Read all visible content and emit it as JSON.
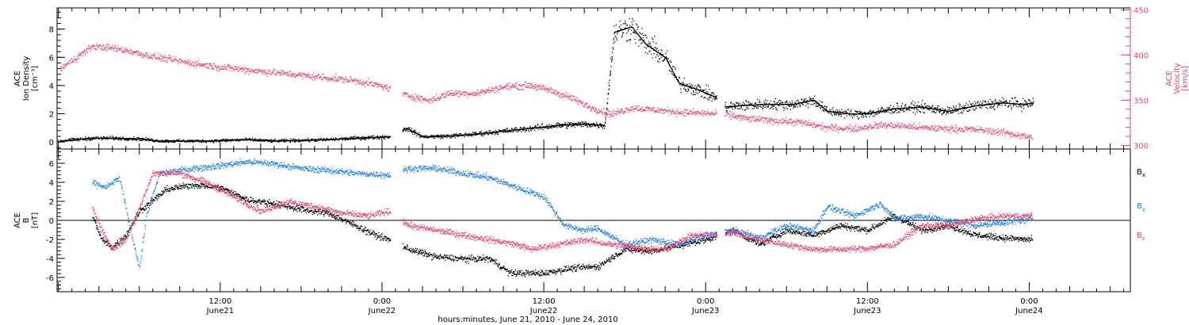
{
  "figure": {
    "xlabel": "hours:minutes, June 21, 2010 - June 24, 2010",
    "xticks": [
      {
        "time": "12:00",
        "date": "June21",
        "hour": 12
      },
      {
        "time": "0:00",
        "date": "June22",
        "hour": 24
      },
      {
        "time": "12:00",
        "date": "June22",
        "hour": 36
      },
      {
        "time": "0:00",
        "date": "June23",
        "hour": 48
      },
      {
        "time": "12:00",
        "date": "June23",
        "hour": 60
      },
      {
        "time": "0:00",
        "date": "June24",
        "hour": 72
      }
    ],
    "colors": {
      "black": "#000000",
      "pink": "#e8436a",
      "blue": "#1e82e6"
    }
  },
  "chart_data": [
    {
      "type": "scatter",
      "panel": "top",
      "ylabel_left": [
        "ACE",
        "Ion Density",
        "[cm⁻³]"
      ],
      "ylabel_right": [
        "ACE",
        "Velocity",
        "[km/s]"
      ],
      "ylim_left": [
        -0.5,
        9.5
      ],
      "ylim_right": [
        296,
        452
      ],
      "yticks_left": [
        0,
        2,
        4,
        6,
        8
      ],
      "yticks_right": [
        300,
        350,
        400,
        450
      ],
      "xlim_hours": [
        -0.1,
        79.5
      ],
      "series": [
        {
          "axis": "left",
          "color": "black",
          "points": [
            [
              0.1,
              0.1
            ],
            [
              2.5,
              0.3
            ],
            [
              4,
              0.3
            ],
            [
              6,
              0.25
            ],
            [
              7.5,
              0.1
            ],
            [
              9,
              0.1
            ],
            [
              11,
              0.1
            ],
            [
              12.5,
              0.15
            ],
            [
              14,
              0.2
            ],
            [
              16,
              0.1
            ],
            [
              18,
              0.15
            ],
            [
              20,
              0.2
            ],
            [
              22,
              0.3
            ],
            [
              24.5,
              0.4
            ],
            [
              25.8,
              1.0
            ],
            [
              27,
              0.4
            ],
            [
              29,
              0.45
            ],
            [
              31,
              0.6
            ],
            [
              33,
              0.8
            ],
            [
              35,
              1.0
            ],
            [
              37,
              1.2
            ],
            [
              39,
              1.3
            ],
            [
              40.5,
              1.2
            ],
            [
              41.2,
              7.8
            ],
            [
              42.5,
              8.2
            ],
            [
              43.5,
              7.0
            ],
            [
              45,
              6.0
            ],
            [
              46,
              4.2
            ],
            [
              47.5,
              3.7
            ],
            [
              48.7,
              3.2
            ],
            [
              49.2,
              2.5
            ],
            [
              50.5,
              2.6
            ],
            [
              52.5,
              2.7
            ],
            [
              54.5,
              2.7
            ],
            [
              56,
              3.0
            ],
            [
              57,
              2.2
            ],
            [
              59,
              2.0
            ],
            [
              60.5,
              2.1
            ],
            [
              62,
              2.4
            ],
            [
              64,
              2.5
            ],
            [
              66,
              2.2
            ],
            [
              68,
              2.6
            ],
            [
              70,
              2.8
            ],
            [
              71.5,
              2.7
            ],
            [
              72.3,
              2.8
            ]
          ]
        },
        {
          "axis": "right",
          "color": "pink",
          "points": [
            [
              0.1,
              385
            ],
            [
              2.5,
              410
            ],
            [
              4,
              408
            ],
            [
              5.5,
              404
            ],
            [
              6.5,
              400
            ],
            [
              8,
              396
            ],
            [
              10,
              391
            ],
            [
              12,
              387
            ],
            [
              14,
              384
            ],
            [
              16,
              381
            ],
            [
              18,
              378
            ],
            [
              20,
              375
            ],
            [
              22,
              372
            ],
            [
              24,
              366
            ],
            [
              25.8,
              356
            ],
            [
              27.5,
              350
            ],
            [
              29,
              358
            ],
            [
              31,
              358
            ],
            [
              33,
              365
            ],
            [
              35,
              367
            ],
            [
              36.5,
              361
            ],
            [
              38,
              353
            ],
            [
              39.5,
              342
            ],
            [
              41,
              335
            ],
            [
              42.5,
              342
            ],
            [
              44,
              340
            ],
            [
              46,
              337
            ],
            [
              48,
              336
            ],
            [
              48.7,
              335
            ],
            [
              49.5,
              335
            ],
            [
              51,
              330
            ],
            [
              53,
              328
            ],
            [
              55,
              326
            ],
            [
              57,
              320
            ],
            [
              59,
              319
            ],
            [
              61,
              323
            ],
            [
              62.5,
              322
            ],
            [
              64,
              320
            ],
            [
              66,
              319
            ],
            [
              68,
              318
            ],
            [
              70,
              315
            ],
            [
              71.5,
              311
            ],
            [
              72.2,
              309
            ]
          ]
        }
      ]
    },
    {
      "type": "scatter",
      "panel": "bottom",
      "ylabel_left": [
        "ACE",
        "B",
        "[nT]"
      ],
      "ylim": [
        -7.5,
        7.5
      ],
      "yticks": [
        -6,
        -4,
        -2,
        0,
        2,
        4,
        6
      ],
      "xlim_hours": [
        -0.1,
        79.5
      ],
      "series": [
        {
          "name": "Bx",
          "color": "black",
          "points": [
            [
              2.5,
              0.5
            ],
            [
              3.2,
              -2.0
            ],
            [
              4,
              -2.8
            ],
            [
              5,
              -1.5
            ],
            [
              6,
              1.0
            ],
            [
              8,
              3.3
            ],
            [
              10,
              3.8
            ],
            [
              12,
              3.5
            ],
            [
              14,
              2.2
            ],
            [
              16,
              1.8
            ],
            [
              18,
              1.2
            ],
            [
              20,
              0.8
            ],
            [
              22,
              -0.5
            ],
            [
              23.5,
              -1.5
            ],
            [
              24.5,
              -2.0
            ],
            [
              26,
              -3.0
            ],
            [
              28,
              -3.8
            ],
            [
              30,
              -4.0
            ],
            [
              32,
              -4.0
            ],
            [
              33.5,
              -5.5
            ],
            [
              36,
              -5.5
            ],
            [
              38,
              -5.0
            ],
            [
              40,
              -4.8
            ],
            [
              42,
              -3.0
            ],
            [
              44,
              -3.2
            ],
            [
              46,
              -2.6
            ],
            [
              48,
              -2.0
            ],
            [
              50,
              -1.0
            ],
            [
              52,
              -2.5
            ],
            [
              54,
              -1.0
            ],
            [
              56,
              -1.5
            ],
            [
              58,
              -0.5
            ],
            [
              60,
              -1.0
            ],
            [
              62,
              0.5
            ],
            [
              64,
              -1.0
            ],
            [
              66,
              -0.5
            ],
            [
              68,
              -1.5
            ],
            [
              70,
              -1.8
            ],
            [
              72.2,
              -2.0
            ]
          ]
        },
        {
          "name": "By",
          "color": "blue",
          "points": [
            [
              2.5,
              4.0
            ],
            [
              3.5,
              3.5
            ],
            [
              4.5,
              4.5
            ],
            [
              5.5,
              -2.0
            ],
            [
              6,
              -5.0
            ],
            [
              6.5,
              0.5
            ],
            [
              7.5,
              5.0
            ],
            [
              10,
              5.5
            ],
            [
              12,
              5.8
            ],
            [
              14,
              6.2
            ],
            [
              16,
              6.0
            ],
            [
              18,
              5.5
            ],
            [
              20,
              5.3
            ],
            [
              22,
              5.0
            ],
            [
              24.5,
              4.8
            ],
            [
              26,
              5.5
            ],
            [
              28,
              5.5
            ],
            [
              30,
              5.0
            ],
            [
              32,
              4.5
            ],
            [
              34,
              3.5
            ],
            [
              36,
              2.5
            ],
            [
              37.5,
              -0.5
            ],
            [
              39,
              -1.0
            ],
            [
              40,
              -0.8
            ],
            [
              42,
              -2.5
            ],
            [
              44,
              -2.0
            ],
            [
              46,
              -2.5
            ],
            [
              48,
              -1.5
            ],
            [
              50,
              -1.0
            ],
            [
              52,
              -1.8
            ],
            [
              54,
              -0.5
            ],
            [
              56,
              -1.0
            ],
            [
              57,
              1.5
            ],
            [
              59,
              0.5
            ],
            [
              61,
              1.8
            ],
            [
              62,
              0.2
            ],
            [
              64,
              0.5
            ],
            [
              66,
              0.0
            ],
            [
              68,
              -0.5
            ],
            [
              70,
              -0.2
            ],
            [
              72.2,
              0.2
            ]
          ]
        },
        {
          "name": "Bz",
          "color": "pink",
          "points": [
            [
              2.5,
              1.5
            ],
            [
              3.2,
              -1.0
            ],
            [
              4,
              -3.0
            ],
            [
              5,
              -2.0
            ],
            [
              6,
              1.5
            ],
            [
              7,
              5.0
            ],
            [
              9,
              5.0
            ],
            [
              11,
              4.0
            ],
            [
              13,
              2.5
            ],
            [
              15,
              1.0
            ],
            [
              17,
              2.0
            ],
            [
              19,
              1.5
            ],
            [
              21,
              0.8
            ],
            [
              23,
              0.5
            ],
            [
              24.5,
              1.0
            ],
            [
              26,
              -0.5
            ],
            [
              28,
              -1.0
            ],
            [
              30,
              -1.5
            ],
            [
              32,
              -2.0
            ],
            [
              34,
              -2.5
            ],
            [
              35,
              -3.0
            ],
            [
              37,
              -2.5
            ],
            [
              39,
              -2.0
            ],
            [
              41,
              -2.5
            ],
            [
              43,
              -2.8
            ],
            [
              45,
              -3.0
            ],
            [
              47,
              -1.5
            ],
            [
              48.7,
              -1.5
            ],
            [
              50,
              -1.2
            ],
            [
              52,
              -2.0
            ],
            [
              54,
              -2.5
            ],
            [
              56,
              -3.0
            ],
            [
              58,
              -3.0
            ],
            [
              60,
              -2.9
            ],
            [
              62,
              -2.5
            ],
            [
              64,
              -0.5
            ],
            [
              66,
              -0.5
            ],
            [
              68,
              0.2
            ],
            [
              70,
              0.5
            ],
            [
              72.2,
              0.5
            ]
          ]
        }
      ],
      "legend": [
        "Bx",
        "By",
        "Bz"
      ]
    }
  ]
}
